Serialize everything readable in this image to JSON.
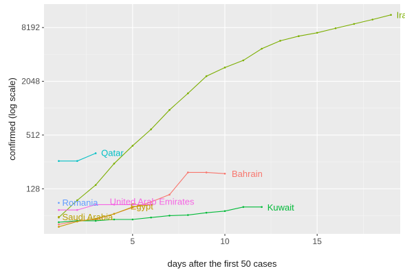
{
  "chart_data": {
    "type": "line",
    "xlabel": "days after the first  50  cases",
    "ylabel": "confirmed  (log scale)",
    "y_scale": "log",
    "xlim": [
      0.2,
      19.5
    ],
    "ylim": [
      40,
      15000
    ],
    "x_ticks": [
      5,
      10,
      15
    ],
    "x_tick_labels": [
      "5",
      "10",
      "15"
    ],
    "y_ticks": [
      128,
      512,
      2048,
      8192
    ],
    "y_tick_labels": [
      "128",
      "512",
      "2048",
      "8192"
    ],
    "grid": true,
    "background": "#ebebeb",
    "series": [
      {
        "name": "Iran",
        "color": "#7cae00",
        "x": [
          1,
          2,
          3,
          4,
          5,
          6,
          7,
          8,
          9,
          10,
          11,
          12,
          13,
          14,
          15,
          16,
          17,
          18,
          19
        ],
        "y": [
          61,
          95,
          141,
          245,
          388,
          593,
          978,
          1501,
          2336,
          2922,
          3513,
          4747,
          5823,
          6566,
          7161,
          8042,
          9000,
          10075,
          11364
        ]
      },
      {
        "name": "Qatar",
        "color": "#00bfc4",
        "x": [
          1,
          2,
          3
        ],
        "y": [
          262,
          262,
          320
        ]
      },
      {
        "name": "Bahrain",
        "color": "#f8766d",
        "x": [
          1,
          2,
          3,
          4,
          5,
          6,
          7,
          8,
          9,
          10
        ],
        "y": [
          51,
          56,
          58,
          67,
          79,
          91,
          110,
          195,
          195,
          189
        ]
      },
      {
        "name": "Kuwait",
        "color": "#00ba38",
        "x": [
          1,
          2,
          3,
          4,
          5,
          6,
          7,
          8,
          9,
          10,
          11,
          12
        ],
        "y": [
          54,
          56,
          56,
          58,
          58,
          61,
          64,
          65,
          69,
          72,
          80,
          80
        ]
      },
      {
        "name": "Egypt",
        "color": "#c49a00",
        "x": [
          1,
          2,
          3,
          4,
          5,
          6
        ],
        "y": [
          48,
          55,
          59,
          67,
          80,
          85
        ]
      },
      {
        "name": "United Arab Emirates",
        "color": "#f564e3",
        "x": [
          1,
          2,
          3,
          4,
          5,
          6
        ],
        "y": [
          74,
          74,
          85,
          85,
          85,
          85
        ]
      },
      {
        "name": "Saudi Arabia",
        "color": "#b79f00",
        "x": [
          1
        ],
        "y": [
          62
        ]
      },
      {
        "name": "Romania",
        "color": "#619cff",
        "x": [
          1
        ],
        "y": [
          89
        ]
      }
    ],
    "labels": [
      {
        "text": "Iran",
        "series": "Iran"
      },
      {
        "text": "Qatar",
        "series": "Qatar"
      },
      {
        "text": "Bahrain",
        "series": "Bahrain"
      },
      {
        "text": "Kuwait",
        "series": "Kuwait"
      },
      {
        "text": "Egypt",
        "series": "Egypt"
      },
      {
        "text": "United Arab Emirates",
        "series": "United Arab Emirates"
      },
      {
        "text": "Saudi Arabia",
        "series": "Saudi Arabia"
      },
      {
        "text": "Romania",
        "series": "Romania"
      }
    ]
  }
}
